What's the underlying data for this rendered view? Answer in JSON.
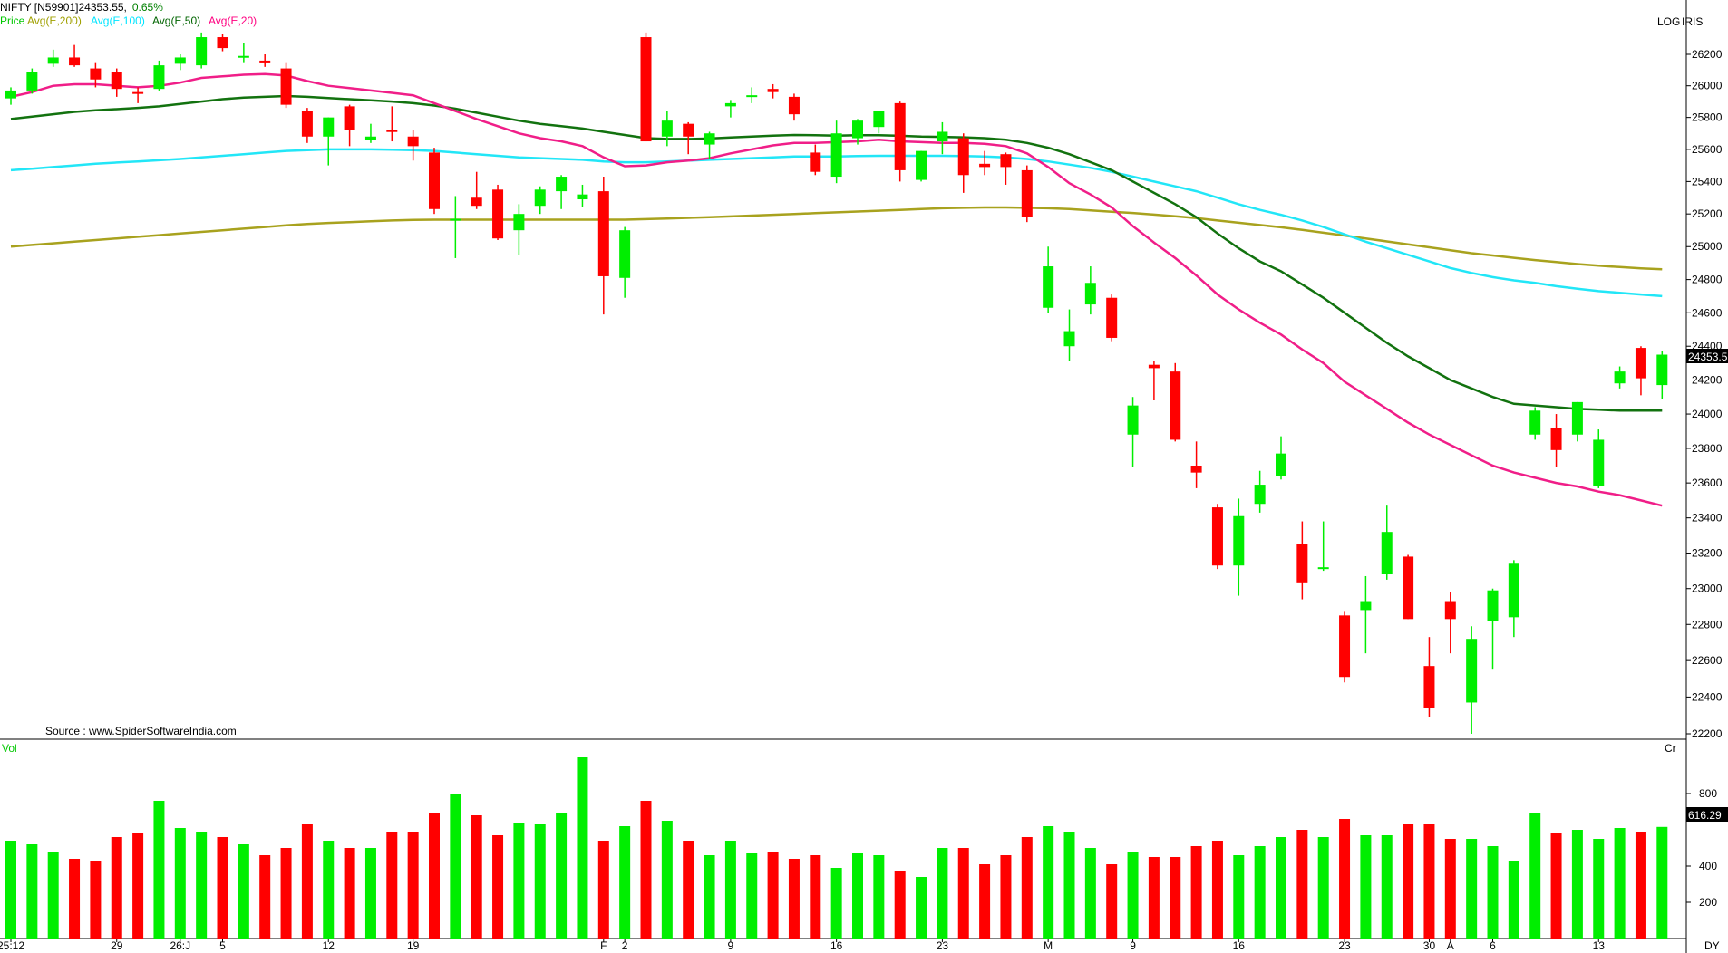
{
  "header": {
    "symbol": "NIFTY [N59901]",
    "last": "24353.55,",
    "change": "0.65%",
    "legend": [
      {
        "label": "Price",
        "color": "#00c800"
      },
      {
        "label": "Avg(E,200)",
        "color": "#a0a000"
      },
      {
        "label": "Avg(E,100)",
        "color": "#00e5ff"
      },
      {
        "label": "Avg(E,50)",
        "color": "#006400"
      },
      {
        "label": "Avg(E,20)",
        "color": "#ff0080"
      }
    ],
    "log_label": "LOG",
    "iris_label": "IRIS",
    "source": "Source : www.SpiderSoftwareIndia.com"
  },
  "volume_panel": {
    "label": "Vol",
    "unit": "Cr",
    "last_value": "616.29"
  },
  "price_tag": "24353.5",
  "period_label": "DY",
  "colors": {
    "up": "#00ee00",
    "down": "#ff0000",
    "ema200": "#a8a21e",
    "ema100": "#22e6f7",
    "ema50": "#12720f",
    "ema20": "#f01e88",
    "panel_border": "#000000",
    "tag_bg": "#000000",
    "tag_fg": "#ffffff"
  },
  "chart_data": {
    "type": "candlestick",
    "title": "NIFTY [N59901]",
    "scale": "log",
    "price_ylim": [
      22200,
      26350
    ],
    "price_ticks": [
      22200,
      22400,
      22600,
      22800,
      23000,
      23200,
      23400,
      23600,
      23800,
      24000,
      24200,
      24400,
      24600,
      24800,
      25000,
      25200,
      25400,
      25600,
      25800,
      26000,
      26200
    ],
    "volume_ylim": [
      0,
      1000
    ],
    "volume_ticks": [
      200,
      400,
      800
    ],
    "x_labels": [
      {
        "i": 0,
        "text": "25:12"
      },
      {
        "i": 5,
        "text": "29"
      },
      {
        "i": 8,
        "text": "26:J"
      },
      {
        "i": 10,
        "text": "5"
      },
      {
        "i": 15,
        "text": "12"
      },
      {
        "i": 19,
        "text": "19"
      },
      {
        "i": 28,
        "text": "F"
      },
      {
        "i": 29,
        "text": "2"
      },
      {
        "i": 34,
        "text": "9"
      },
      {
        "i": 39,
        "text": "16"
      },
      {
        "i": 44,
        "text": "23"
      },
      {
        "i": 49,
        "text": "M"
      },
      {
        "i": 53,
        "text": "9"
      },
      {
        "i": 58,
        "text": "16"
      },
      {
        "i": 63,
        "text": "23"
      },
      {
        "i": 67,
        "text": "30"
      },
      {
        "i": 68,
        "text": "A"
      },
      {
        "i": 70,
        "text": "6"
      },
      {
        "i": 75,
        "text": "13"
      }
    ],
    "candles": [
      [
        25920,
        25990,
        25880,
        25970
      ],
      [
        25970,
        26110,
        25950,
        26090
      ],
      [
        26140,
        26230,
        26120,
        26180
      ],
      [
        26180,
        26260,
        26120,
        26130
      ],
      [
        26110,
        26150,
        25990,
        26040
      ],
      [
        26090,
        26110,
        25930,
        25980
      ],
      [
        25960,
        25990,
        25890,
        25950
      ],
      [
        25980,
        26160,
        25970,
        26130
      ],
      [
        26140,
        26200,
        26100,
        26180
      ],
      [
        26130,
        26340,
        26110,
        26310
      ],
      [
        26310,
        26330,
        26220,
        26240
      ],
      [
        26190,
        26270,
        26150,
        26190
      ],
      [
        26160,
        26200,
        26120,
        26150
      ],
      [
        26110,
        26150,
        25860,
        25880
      ],
      [
        25840,
        25860,
        25640,
        25680
      ],
      [
        25680,
        25800,
        25500,
        25800
      ],
      [
        25870,
        25880,
        25620,
        25720
      ],
      [
        25660,
        25760,
        25640,
        25680
      ],
      [
        25720,
        25870,
        25650,
        25710
      ],
      [
        25680,
        25720,
        25530,
        25620
      ],
      [
        25580,
        25610,
        25200,
        25230
      ],
      [
        25160,
        25310,
        24930,
        25170
      ],
      [
        25300,
        25460,
        25230,
        25250
      ],
      [
        25350,
        25380,
        25040,
        25050
      ],
      [
        25100,
        25260,
        24950,
        25200
      ],
      [
        25250,
        25370,
        25200,
        25350
      ],
      [
        25340,
        25440,
        25230,
        25430
      ],
      [
        25290,
        25380,
        25240,
        25320
      ],
      [
        25340,
        25430,
        24590,
        24820
      ],
      [
        24810,
        25120,
        24690,
        25100
      ],
      [
        26310,
        26340,
        25650,
        25650
      ],
      [
        25680,
        25840,
        25620,
        25780
      ],
      [
        25760,
        25770,
        25570,
        25680
      ],
      [
        25630,
        25710,
        25540,
        25700
      ],
      [
        25870,
        25910,
        25800,
        25890
      ],
      [
        25930,
        25990,
        25890,
        25940
      ],
      [
        25980,
        26010,
        25920,
        25960
      ],
      [
        25930,
        25950,
        25780,
        25820
      ],
      [
        25580,
        25630,
        25440,
        25460
      ],
      [
        25430,
        25780,
        25390,
        25700
      ],
      [
        25670,
        25790,
        25630,
        25780
      ],
      [
        25740,
        25840,
        25700,
        25840
      ],
      [
        25890,
        25900,
        25400,
        25470
      ],
      [
        25410,
        25590,
        25400,
        25590
      ],
      [
        25650,
        25770,
        25570,
        25710
      ],
      [
        25670,
        25700,
        25330,
        25440
      ],
      [
        25510,
        25590,
        25440,
        25490
      ],
      [
        25570,
        25580,
        25380,
        25490
      ],
      [
        25470,
        25500,
        25150,
        25180
      ],
      [
        24630,
        25000,
        24600,
        24880
      ],
      [
        24400,
        24620,
        24310,
        24490
      ],
      [
        24650,
        24880,
        24590,
        24780
      ],
      [
        24690,
        24710,
        24430,
        24450
      ],
      [
        23880,
        24100,
        23690,
        24050
      ],
      [
        24290,
        24310,
        24080,
        24270
      ],
      [
        24250,
        24300,
        23840,
        23850
      ],
      [
        23700,
        23840,
        23570,
        23660
      ],
      [
        23460,
        23480,
        23110,
        23130
      ],
      [
        23130,
        23510,
        22960,
        23410
      ],
      [
        23480,
        23670,
        23430,
        23590
      ],
      [
        23640,
        23870,
        23620,
        23770
      ],
      [
        23250,
        23380,
        22940,
        23030
      ],
      [
        23120,
        23380,
        23100,
        23120
      ],
      [
        22850,
        22870,
        22480,
        22510
      ],
      [
        22880,
        23070,
        22640,
        22930
      ],
      [
        23080,
        23470,
        23050,
        23320
      ],
      [
        23180,
        23190,
        22830,
        22830
      ],
      [
        22570,
        22730,
        22290,
        22340
      ],
      [
        22930,
        22980,
        22640,
        22830
      ],
      [
        22370,
        22790,
        22200,
        22720
      ],
      [
        22820,
        23000,
        22550,
        22990
      ],
      [
        22840,
        23160,
        22730,
        23140
      ],
      [
        23880,
        24040,
        23850,
        24020
      ],
      [
        23920,
        24000,
        23690,
        23790
      ],
      [
        23880,
        24070,
        23840,
        24070
      ],
      [
        23580,
        23910,
        23570,
        23850
      ],
      [
        24180,
        24280,
        24150,
        24250
      ],
      [
        24390,
        24400,
        24110,
        24210
      ],
      [
        24170,
        24370,
        24090,
        24350
      ]
    ],
    "volume": [
      540,
      520,
      480,
      440,
      430,
      560,
      580,
      760,
      610,
      590,
      560,
      520,
      460,
      500,
      630,
      540,
      500,
      500,
      590,
      590,
      690,
      800,
      680,
      570,
      640,
      630,
      690,
      1000,
      540,
      620,
      760,
      650,
      540,
      460,
      540,
      470,
      480,
      440,
      460,
      390,
      470,
      460,
      370,
      340,
      500,
      500,
      410,
      460,
      560,
      620,
      590,
      500,
      410,
      480,
      450,
      450,
      510,
      540,
      460,
      510,
      560,
      600,
      560,
      660,
      570,
      570,
      630,
      630,
      550,
      550,
      510,
      430,
      690,
      580,
      600,
      550,
      610,
      590,
      616
    ],
    "ema20": [
      25930,
      25960,
      26000,
      26010,
      26010,
      26000,
      25990,
      26000,
      26020,
      26050,
      26060,
      26070,
      26075,
      26065,
      26030,
      26000,
      25985,
      25970,
      25955,
      25940,
      25890,
      25840,
      25790,
      25745,
      25700,
      25670,
      25650,
      25620,
      25550,
      25495,
      25500,
      25520,
      25530,
      25545,
      25575,
      25600,
      25625,
      25640,
      25640,
      25645,
      25650,
      25660,
      25650,
      25645,
      25640,
      25640,
      25635,
      25620,
      25575,
      25490,
      25390,
      25320,
      25240,
      25125,
      25025,
      24930,
      24825,
      24710,
      24620,
      24540,
      24470,
      24380,
      24300,
      24190,
      24110,
      24030,
      23950,
      23880,
      23820,
      23760,
      23700,
      23660,
      23630,
      23600,
      23580,
      23550,
      23530,
      23500,
      23470
    ],
    "ema50": [
      25790,
      25805,
      25820,
      25835,
      25845,
      25852,
      25860,
      25870,
      25885,
      25900,
      25915,
      25925,
      25930,
      25935,
      25930,
      25922,
      25915,
      25908,
      25900,
      25890,
      25875,
      25855,
      25830,
      25805,
      25780,
      25760,
      25745,
      25730,
      25710,
      25690,
      25670,
      25665,
      25665,
      25668,
      25674,
      25680,
      25686,
      25690,
      25688,
      25686,
      25688,
      25688,
      25685,
      25680,
      25678,
      25675,
      25670,
      25660,
      25640,
      25610,
      25570,
      25520,
      25470,
      25400,
      25330,
      25260,
      25180,
      25080,
      24990,
      24910,
      24850,
      24770,
      24690,
      24600,
      24510,
      24420,
      24340,
      24270,
      24200,
      24150,
      24100,
      24060,
      24050,
      24040,
      24030,
      24025,
      24020,
      24020,
      24020
    ],
    "ema100": [
      25470,
      25480,
      25490,
      25500,
      25510,
      25518,
      25525,
      25532,
      25540,
      25550,
      25560,
      25570,
      25580,
      25590,
      25595,
      25600,
      25600,
      25600,
      25598,
      25595,
      25590,
      25580,
      25570,
      25560,
      25550,
      25545,
      25540,
      25535,
      25525,
      25520,
      25520,
      25525,
      25530,
      25535,
      25540,
      25545,
      25550,
      25555,
      25555,
      25555,
      25558,
      25560,
      25560,
      25560,
      25560,
      25558,
      25555,
      25550,
      25540,
      25525,
      25505,
      25485,
      25460,
      25430,
      25400,
      25370,
      25340,
      25300,
      25260,
      25225,
      25195,
      25160,
      25120,
      25075,
      25030,
      24990,
      24950,
      24910,
      24870,
      24840,
      24815,
      24795,
      24780,
      24760,
      24745,
      24730,
      24720,
      24710,
      24700
    ],
    "ema200": [
      25000,
      25010,
      25020,
      25030,
      25040,
      25050,
      25060,
      25070,
      25080,
      25090,
      25100,
      25110,
      25120,
      25130,
      25138,
      25145,
      25150,
      25155,
      25160,
      25163,
      25165,
      25165,
      25165,
      25165,
      25165,
      25165,
      25165,
      25165,
      25165,
      25165,
      25168,
      25172,
      25176,
      25180,
      25185,
      25190,
      25195,
      25200,
      25205,
      25210,
      25215,
      25220,
      25225,
      25230,
      25235,
      25238,
      25240,
      25240,
      25238,
      25235,
      25230,
      25222,
      25214,
      25206,
      25196,
      25186,
      25174,
      25160,
      25146,
      25132,
      25118,
      25102,
      25085,
      25068,
      25050,
      25032,
      25014,
      24996,
      24978,
      24960,
      24946,
      24932,
      24918,
      24906,
      24894,
      24884,
      24876,
      24868,
      24862
    ]
  }
}
